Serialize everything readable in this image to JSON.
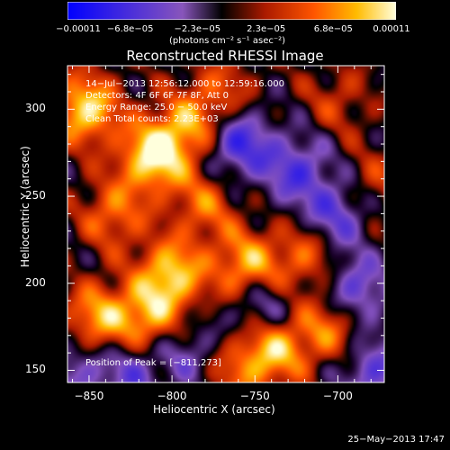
{
  "chart_data": {
    "type": "heatmap",
    "title": "Reconstructed RHESSI Image",
    "xlabel": "Heliocentric X (arcsec)",
    "ylabel": "Heliocentric Y (arcsec)",
    "xlim": [
      -863,
      -672
    ],
    "ylim": [
      143,
      325
    ],
    "xticks": [
      {
        "v": -850,
        "label": "−850"
      },
      {
        "v": -800,
        "label": "−800"
      },
      {
        "v": -750,
        "label": "−750"
      },
      {
        "v": -700,
        "label": "−700"
      }
    ],
    "yticks": [
      {
        "v": 150,
        "label": "150"
      },
      {
        "v": 200,
        "label": "200"
      },
      {
        "v": 250,
        "label": "250"
      },
      {
        "v": 300,
        "label": "300"
      }
    ],
    "colorbar": {
      "range": [
        -0.00011,
        0.00011
      ],
      "ticks": [
        {
          "v": -0.00011,
          "label": "−0.00011"
        },
        {
          "v": -6.8e-05,
          "label": "−6.8e−05"
        },
        {
          "v": -2.3e-05,
          "label": "−2.3e−05"
        },
        {
          "v": 2.3e-05,
          "label": "2.3e−05"
        },
        {
          "v": 6.8e-05,
          "label": "6.8e−05"
        },
        {
          "v": 0.00011,
          "label": "0.00011"
        }
      ],
      "units": "(photons cm⁻² s⁻¹ asec⁻²)"
    },
    "annotations": [
      "14−Jul−2013 12:56:12.000 to 12:59:16.000",
      "Detectors: 4F 6F 6F 7F 8F, Att 0",
      "Energy Range: 25.0 − 50.0 keV",
      "Clean     Total counts: 2.23E+03"
    ],
    "peak_label": "Position of Peak = [−811,273]",
    "peak": [
      -811,
      273
    ],
    "sources": [
      [
        -811,
        273,
        1.0
      ],
      [
        -852,
        300,
        0.9
      ],
      [
        -800,
        205,
        0.85
      ],
      [
        -755,
        210,
        0.75
      ],
      [
        -815,
        180,
        0.7
      ],
      [
        -738,
        163,
        0.8
      ],
      [
        -790,
        290,
        0.6
      ],
      [
        -845,
        180,
        0.7
      ],
      [
        -705,
        175,
        0.6
      ],
      [
        -780,
        245,
        0.5
      ],
      [
        -720,
        215,
        0.5
      ],
      [
        -700,
        305,
        0.3
      ],
      [
        -770,
        310,
        0.4
      ],
      [
        -835,
        240,
        0.55
      ],
      [
        -760,
        150,
        0.45
      ],
      [
        -680,
        255,
        0.35
      ],
      [
        -725,
        265,
        -0.55
      ],
      [
        -690,
        195,
        -0.6
      ],
      [
        -760,
        280,
        -0.7
      ],
      [
        -745,
        185,
        -0.5
      ],
      [
        -825,
        150,
        -0.45
      ],
      [
        -700,
        240,
        -0.6
      ],
      [
        -860,
        150,
        -0.4
      ],
      [
        -790,
        160,
        -0.35
      ],
      [
        -680,
        150,
        -0.5
      ]
    ]
  },
  "timestamp": "25−May−2013 17:47"
}
